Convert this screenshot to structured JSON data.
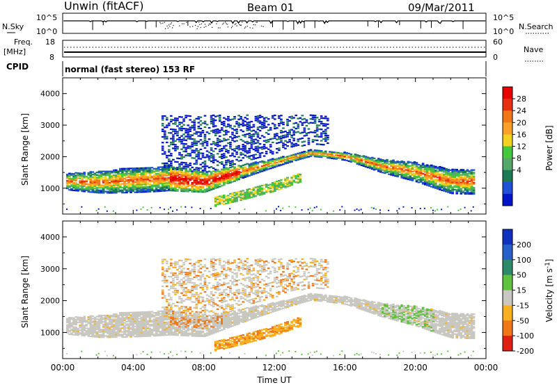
{
  "header": {
    "site": "Unwin (fitACF)",
    "beam": "Beam 01",
    "date": "09/Mar/2011"
  },
  "panels": {
    "nsky": {
      "label": "N.Sky",
      "left_ticks": [
        "10^5",
        "10^0"
      ],
      "right_ticks": [
        "10^5",
        "10^0"
      ],
      "right_label": "N.Search"
    },
    "freq": {
      "label_line1": "Freq.",
      "label_line2": "[MHz]",
      "left_ticks": [
        "18",
        "8"
      ],
      "right_ticks": [
        "60",
        "0"
      ],
      "right_label": "Nave"
    },
    "cpid": {
      "label": "CPID",
      "text": "normal (fast stereo) 153 RF"
    }
  },
  "power_colorbar": {
    "label": "Power [dB]",
    "ticks": [
      "28",
      "24",
      "20",
      "16",
      "12",
      "8",
      "4"
    ],
    "colors": [
      "#0014c8",
      "#2050d8",
      "#1a7a56",
      "#55a86a",
      "#46c83c",
      "#f2d21e",
      "#f8a028",
      "#f07818",
      "#e83010",
      "#e80000"
    ]
  },
  "velocity_colorbar": {
    "label": "Velocity [m s",
    "label_sup": "-1",
    "label_end": "]",
    "ticks": [
      "200",
      "100",
      "50",
      "15",
      "-15",
      "-50",
      "-100",
      "-200"
    ],
    "colors": [
      "#1030c0",
      "#2860c8",
      "#2a8a6a",
      "#60c040",
      "#c8c8c0",
      "#f8b020",
      "#f07818",
      "#e02010"
    ]
  },
  "xaxis_ticks": [
    "00:00",
    "04:00",
    "08:00",
    "12:00",
    "16:00",
    "20:00",
    "00:00"
  ],
  "xlabel": "Time UT",
  "ylabel": "Slant Range [km]",
  "chart_data": [
    {
      "type": "heatmap",
      "quantity": "Power [dB]",
      "x_range_hours": [
        0,
        24
      ],
      "ylim_km": [
        180,
        4500
      ],
      "y_ticks": [
        1000,
        2000,
        3000,
        4000
      ],
      "color_scale": [
        4,
        28
      ],
      "main_echo_band_km": [
        {
          "t": 0,
          "range": 1200
        },
        {
          "t": 2,
          "range": 1180
        },
        {
          "t": 4,
          "range": 1250
        },
        {
          "t": 6,
          "range": 1300
        },
        {
          "t": 8,
          "range": 1180
        },
        {
          "t": 10,
          "range": 1500
        },
        {
          "t": 12,
          "range": 1800
        },
        {
          "t": 14,
          "range": 2100
        },
        {
          "t": 16,
          "range": 2000
        },
        {
          "t": 18,
          "range": 1700
        },
        {
          "t": 20,
          "range": 1500
        },
        {
          "t": 22,
          "range": 1200
        }
      ],
      "secondary_band_km": [
        {
          "t": 8.5,
          "range": 550
        },
        {
          "t": 10,
          "range": 750
        },
        {
          "t": 12,
          "range": 1050
        },
        {
          "t": 13.5,
          "range": 1350
        }
      ]
    },
    {
      "type": "heatmap",
      "quantity": "Velocity [m s-1]",
      "x_range_hours": [
        0,
        24
      ],
      "ylim_km": [
        180,
        4500
      ],
      "y_ticks": [
        1000,
        2000,
        3000,
        4000
      ],
      "color_scale": [
        -200,
        200
      ],
      "dominant_velocity_m_s": [
        {
          "region": "main echo band",
          "velocity_class": "-15 to 15"
        },
        {
          "region": "secondary band 08:30-14:00",
          "velocity_class": "-50 to -100"
        },
        {
          "region": "18:00-21:00 upper ranges",
          "velocity_class": "15 to 50"
        }
      ]
    }
  ]
}
